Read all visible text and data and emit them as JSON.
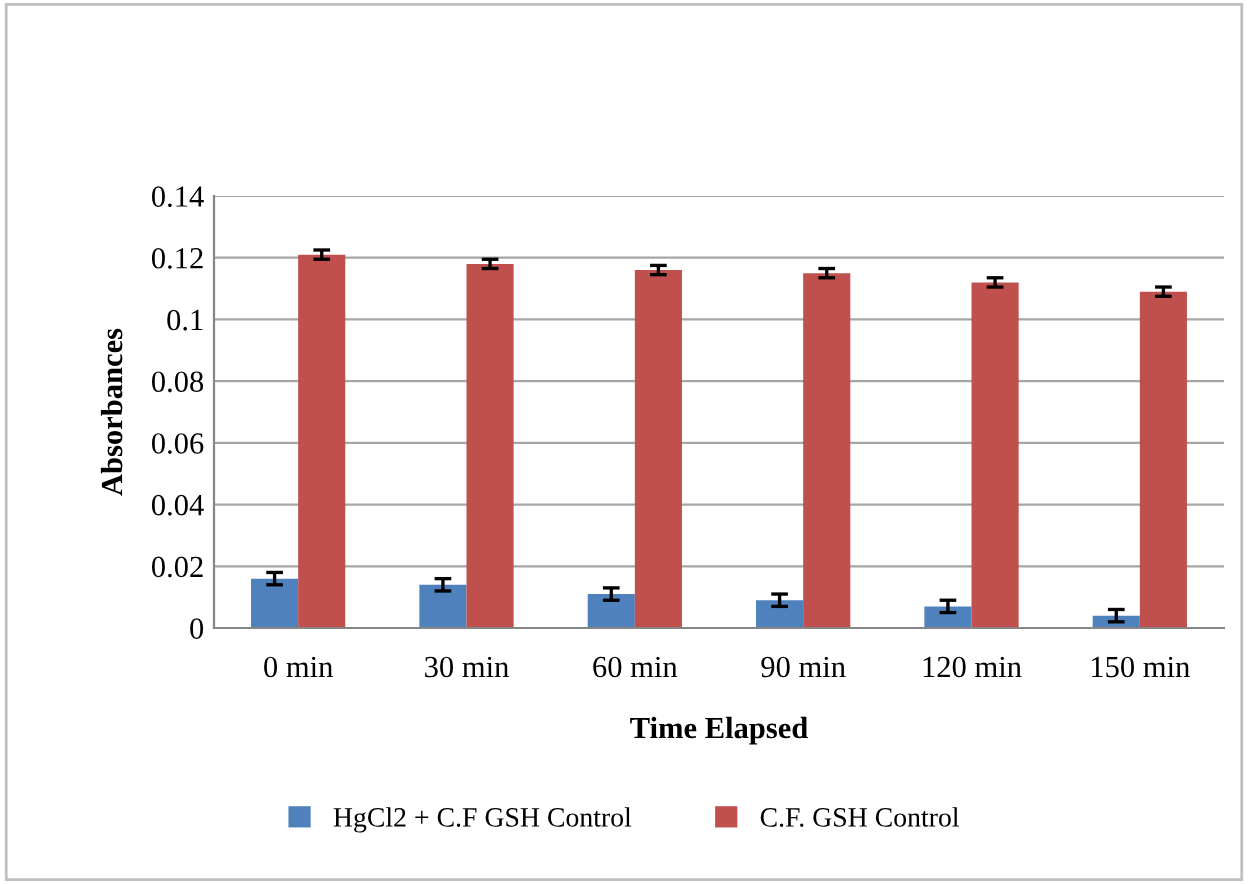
{
  "chart_data": {
    "type": "bar",
    "xlabel": "Time Elapsed",
    "ylabel": "Absorbances",
    "categories": [
      "0 min",
      "30 min",
      "60 min",
      "90 min",
      "120 min",
      "150 min"
    ],
    "series": [
      {
        "name": "HgCl2 + C.F GSH Control",
        "color": "#4f81bd",
        "values": [
          0.016,
          0.014,
          0.011,
          0.009,
          0.007,
          0.004
        ],
        "errors": [
          0.002,
          0.002,
          0.002,
          0.002,
          0.002,
          0.002
        ]
      },
      {
        "name": "C.F. GSH Control",
        "color": "#c0504d",
        "values": [
          0.121,
          0.118,
          0.116,
          0.115,
          0.112,
          0.109
        ],
        "errors": [
          0.0015,
          0.0015,
          0.0015,
          0.0015,
          0.0015,
          0.0015
        ]
      }
    ],
    "ylim": [
      0,
      0.14
    ],
    "yticks": [
      0,
      0.02,
      0.04,
      0.06,
      0.08,
      0.1,
      0.12,
      0.14
    ],
    "grid": "y",
    "legend": "bottom"
  }
}
